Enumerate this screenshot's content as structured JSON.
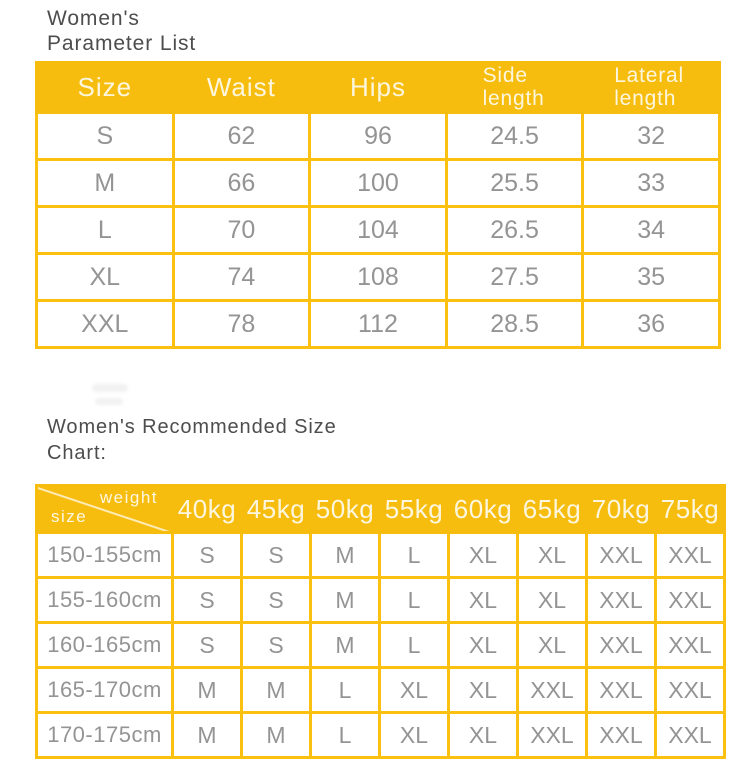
{
  "colors": {
    "table_fill_yellow": "#F6BD0E",
    "table_border_yellow": "#FBC010",
    "header_text": "#FDF6DF",
    "cell_text": "#949494",
    "title_text": "#4D4D4D"
  },
  "parameter_list": {
    "title": "Women's\nParameter List",
    "columns": [
      "Size",
      "Waist",
      "Hips",
      "Side length",
      "Lateral length"
    ],
    "rows": [
      {
        "size": "S",
        "waist": "62",
        "hips": "96",
        "side_length": "24.5",
        "lateral_length": "32"
      },
      {
        "size": "M",
        "waist": "66",
        "hips": "100",
        "side_length": "25.5",
        "lateral_length": "33"
      },
      {
        "size": "L",
        "waist": "70",
        "hips": "104",
        "side_length": "26.5",
        "lateral_length": "34"
      },
      {
        "size": "XL",
        "waist": "74",
        "hips": "108",
        "side_length": "27.5",
        "lateral_length": "35"
      },
      {
        "size": "XXL",
        "waist": "78",
        "hips": "112",
        "side_length": "28.5",
        "lateral_length": "36"
      }
    ]
  },
  "recommended_size": {
    "title": "Women's Recommended Size\nChart:",
    "corner": {
      "top_right": "weight",
      "bottom_left": "size"
    },
    "weight_columns": [
      "40kg",
      "45kg",
      "50kg",
      "55kg",
      "60kg",
      "65kg",
      "70kg",
      "75kg"
    ],
    "rows": [
      {
        "height": "150-155cm",
        "sizes": [
          "S",
          "S",
          "M",
          "L",
          "XL",
          "XL",
          "XXL",
          "XXL"
        ]
      },
      {
        "height": "155-160cm",
        "sizes": [
          "S",
          "S",
          "M",
          "L",
          "XL",
          "XL",
          "XXL",
          "XXL"
        ]
      },
      {
        "height": "160-165cm",
        "sizes": [
          "S",
          "S",
          "M",
          "L",
          "XL",
          "XL",
          "XXL",
          "XXL"
        ]
      },
      {
        "height": "165-170cm",
        "sizes": [
          "M",
          "M",
          "L",
          "XL",
          "XL",
          "XXL",
          "XXL",
          "XXL"
        ]
      },
      {
        "height": "170-175cm",
        "sizes": [
          "M",
          "M",
          "L",
          "XL",
          "XL",
          "XXL",
          "XXL",
          "XXL"
        ]
      }
    ]
  }
}
